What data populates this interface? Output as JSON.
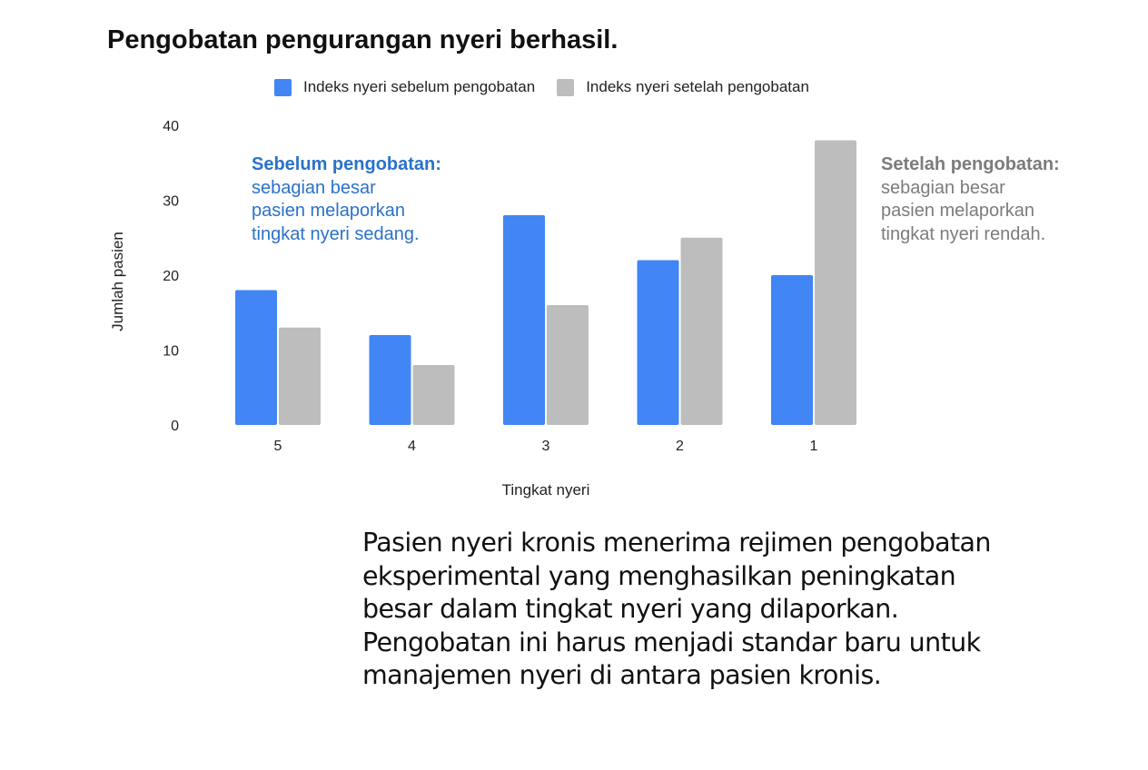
{
  "chart_data": {
    "type": "bar",
    "title": "Pengobatan pengurangan nyeri berhasil.",
    "xlabel": "Tingkat nyeri",
    "ylabel": "Jumlah pasien",
    "categories": [
      "5",
      "4",
      "3",
      "2",
      "1"
    ],
    "series": [
      {
        "name": "Indeks nyeri sebelum pengobatan",
        "color": "#4285f4",
        "values": [
          18,
          12,
          28,
          22,
          20
        ]
      },
      {
        "name": "Indeks nyeri setelah pengobatan",
        "color": "#bdbdbd",
        "values": [
          13,
          8,
          16,
          25,
          38
        ]
      }
    ],
    "ylim": [
      0,
      40
    ],
    "yticks": [
      0,
      10,
      20,
      30,
      40
    ],
    "grid": false,
    "legend_position": "top",
    "annotations": {
      "before": {
        "heading": "Sebelum pengobatan:",
        "lines": [
          "sebagian besar",
          "pasien melaporkan",
          "tingkat nyeri sedang."
        ]
      },
      "after": {
        "heading": "Setelah pengobatan:",
        "lines": [
          "sebagian besar",
          "pasien melaporkan",
          "tingkat nyeri rendah."
        ]
      }
    }
  },
  "caption": {
    "lines": [
      "Pasien nyeri kronis menerima rejimen pengobatan",
      "eksperimental yang menghasilkan peningkatan",
      "besar dalam tingkat nyeri yang dilaporkan.",
      "Pengobatan ini harus menjadi standar baru untuk",
      "manajemen nyeri di antara pasien kronis."
    ]
  }
}
